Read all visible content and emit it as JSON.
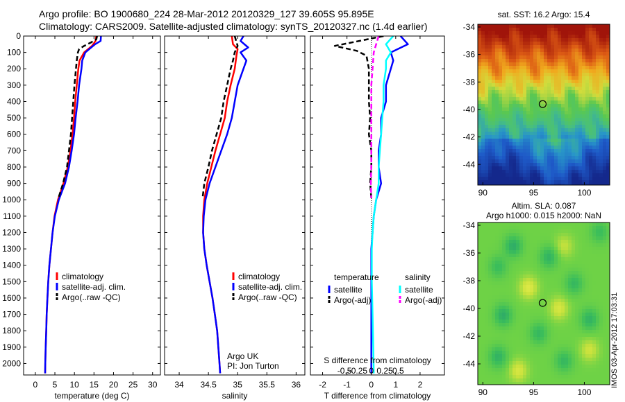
{
  "header": {
    "line1": "Argo profile: BO 1900680_224 28-Mar-2012 20120329_127 39.605S 95.895E",
    "line2": "Climatology: CARS2009. Satellite-adjusted climatology: synTS_20120327.nc (1.4d earlier)"
  },
  "side_text": "IMOS 03-Apr-2012 17:03:31",
  "colors": {
    "climatology": "#ff0000",
    "satellite": "#0000ff",
    "argo": "#000000",
    "sat_salinity": "#00ffff",
    "argo_salinity": "#ff00ff"
  },
  "chart_data": [
    {
      "type": "line",
      "xlabel": "temperature (deg C)",
      "ylabel": "",
      "xlim": [
        -3,
        32
      ],
      "ylim": [
        2070,
        0
      ],
      "xticks": [
        0,
        5,
        10,
        15,
        20,
        25,
        30
      ],
      "yticks": [
        0,
        100,
        200,
        300,
        400,
        500,
        600,
        700,
        800,
        900,
        1000,
        1100,
        1200,
        1300,
        1400,
        1500,
        1600,
        1700,
        1800,
        1900,
        2000
      ],
      "legend": {
        "placement": "lower-center",
        "entries": [
          "climatology",
          "satellite-adj. clim.",
          "Argo(..raw -QC)"
        ]
      },
      "series": [
        {
          "name": "climatology",
          "color": "#ff0000",
          "points": [
            [
              15.6,
              0
            ],
            [
              15.4,
              30
            ],
            [
              14.5,
              60
            ],
            [
              12.5,
              100
            ],
            [
              11.3,
              150
            ],
            [
              11.0,
              200
            ],
            [
              10.6,
              300
            ],
            [
              10.2,
              400
            ],
            [
              9.9,
              500
            ],
            [
              9.5,
              600
            ],
            [
              9.0,
              700
            ],
            [
              8.3,
              800
            ],
            [
              7.2,
              900
            ],
            [
              5.8,
              1000
            ],
            [
              4.9,
              1100
            ],
            [
              4.4,
              1200
            ],
            [
              4.0,
              1300
            ],
            [
              3.6,
              1400
            ],
            [
              3.3,
              1500
            ],
            [
              3.1,
              1600
            ],
            [
              2.9,
              1700
            ],
            [
              2.8,
              1800
            ],
            [
              2.65,
              1900
            ],
            [
              2.55,
              2000
            ],
            [
              2.5,
              2060
            ]
          ]
        },
        {
          "name": "satellite-adj. clim.",
          "color": "#0000ff",
          "points": [
            [
              16.8,
              0
            ],
            [
              16.7,
              30
            ],
            [
              15.3,
              50
            ],
            [
              12.8,
              100
            ],
            [
              12.0,
              150
            ],
            [
              11.8,
              200
            ],
            [
              11.2,
              300
            ],
            [
              10.8,
              400
            ],
            [
              10.3,
              500
            ],
            [
              9.9,
              600
            ],
            [
              9.3,
              700
            ],
            [
              8.6,
              800
            ],
            [
              7.6,
              900
            ],
            [
              6.0,
              1000
            ],
            [
              5.0,
              1100
            ],
            [
              4.4,
              1200
            ],
            [
              4.0,
              1300
            ],
            [
              3.6,
              1400
            ],
            [
              3.3,
              1500
            ],
            [
              3.1,
              1600
            ],
            [
              2.9,
              1700
            ],
            [
              2.8,
              1800
            ],
            [
              2.65,
              1900
            ],
            [
              2.55,
              2000
            ],
            [
              2.5,
              2060
            ]
          ]
        },
        {
          "name": "Argo(..raw -QC)",
          "color": "#000000",
          "dashed": true,
          "points": [
            [
              15.8,
              0
            ],
            [
              15.6,
              20
            ],
            [
              14.2,
              40
            ],
            [
              12.5,
              60
            ],
            [
              11.2,
              80
            ],
            [
              10.9,
              100
            ],
            [
              10.6,
              150
            ],
            [
              10.4,
              200
            ],
            [
              10.0,
              300
            ],
            [
              9.7,
              400
            ],
            [
              9.4,
              500
            ],
            [
              9.1,
              600
            ],
            [
              8.6,
              700
            ],
            [
              8.1,
              800
            ],
            [
              7.1,
              900
            ],
            [
              5.9,
              990
            ]
          ]
        }
      ]
    },
    {
      "type": "line",
      "xlabel": "salinity",
      "ylabel": "",
      "xlim": [
        33.75,
        36.15
      ],
      "ylim": [
        2070,
        0
      ],
      "xticks": [
        34,
        34.5,
        35,
        35.5,
        36
      ],
      "legend": {
        "placement": "lower-right",
        "entries": [
          "climatology",
          "satellite-adj. clim.",
          "Argo(..raw -QC)"
        ]
      },
      "annotations": [
        "Argo UK",
        "PI: Jon Turton"
      ],
      "series": [
        {
          "name": "climatology",
          "color": "#ff0000",
          "points": [
            [
              34.9,
              0
            ],
            [
              34.92,
              50
            ],
            [
              35.0,
              80
            ],
            [
              34.98,
              120
            ],
            [
              34.95,
              200
            ],
            [
              34.88,
              300
            ],
            [
              34.82,
              400
            ],
            [
              34.78,
              500
            ],
            [
              34.7,
              600
            ],
            [
              34.62,
              700
            ],
            [
              34.55,
              800
            ],
            [
              34.48,
              900
            ],
            [
              34.43,
              1000
            ],
            [
              34.41,
              1100
            ],
            [
              34.41,
              1200
            ],
            [
              34.43,
              1300
            ],
            [
              34.47,
              1400
            ],
            [
              34.52,
              1500
            ],
            [
              34.57,
              1600
            ],
            [
              34.61,
              1700
            ],
            [
              34.65,
              1800
            ],
            [
              34.67,
              1900
            ],
            [
              34.69,
              2000
            ],
            [
              34.7,
              2060
            ]
          ]
        },
        {
          "name": "satellite-adj. clim.",
          "color": "#0000ff",
          "points": [
            [
              35.1,
              0
            ],
            [
              35.05,
              30
            ],
            [
              35.18,
              70
            ],
            [
              35.05,
              100
            ],
            [
              35.15,
              150
            ],
            [
              35.1,
              200
            ],
            [
              35.0,
              300
            ],
            [
              34.95,
              400
            ],
            [
              34.9,
              500
            ],
            [
              34.82,
              600
            ],
            [
              34.72,
              700
            ],
            [
              34.62,
              800
            ],
            [
              34.52,
              900
            ],
            [
              34.45,
              1000
            ],
            [
              34.42,
              1100
            ],
            [
              34.41,
              1200
            ],
            [
              34.43,
              1300
            ],
            [
              34.47,
              1400
            ],
            [
              34.52,
              1500
            ],
            [
              34.57,
              1600
            ],
            [
              34.61,
              1700
            ],
            [
              34.65,
              1800
            ],
            [
              34.67,
              1900
            ],
            [
              34.69,
              2000
            ],
            [
              34.7,
              2060
            ]
          ]
        },
        {
          "name": "Argo(..raw -QC)",
          "color": "#000000",
          "dashed": true,
          "points": [
            [
              34.95,
              0
            ],
            [
              35.0,
              60
            ],
            [
              34.95,
              100
            ],
            [
              34.92,
              150
            ],
            [
              34.88,
              200
            ],
            [
              34.82,
              300
            ],
            [
              34.76,
              400
            ],
            [
              34.72,
              500
            ],
            [
              34.64,
              600
            ],
            [
              34.56,
              700
            ],
            [
              34.5,
              800
            ],
            [
              34.43,
              900
            ],
            [
              34.4,
              990
            ]
          ]
        }
      ]
    },
    {
      "type": "line",
      "xlabel": "T difference from climatology",
      "xlabel_top": "S difference from climatology",
      "ylabel": "",
      "xlim": [
        -2.5,
        3.0
      ],
      "ylim": [
        2070,
        0
      ],
      "xticks": [
        -2,
        -1,
        0,
        1,
        2
      ],
      "s_xticks": [
        -0.5,
        -0.25,
        0,
        0.25,
        0.5
      ],
      "legend": {
        "placement": "lower",
        "groups": [
          {
            "title": "temperature",
            "entries": [
              "satellite",
              "Argo(-adj)"
            ]
          },
          {
            "title": "salinity",
            "entries": [
              "satellite",
              "Argo(-adj)"
            ]
          }
        ]
      },
      "series": [
        {
          "name": "satellite",
          "quantity": "temperature",
          "color": "#0000ff",
          "points": [
            [
              1.2,
              0
            ],
            [
              1.5,
              50
            ],
            [
              0.8,
              100
            ],
            [
              0.9,
              150
            ],
            [
              0.8,
              200
            ],
            [
              0.6,
              300
            ],
            [
              0.6,
              400
            ],
            [
              0.4,
              500
            ],
            [
              0.4,
              600
            ],
            [
              0.3,
              700
            ],
            [
              0.3,
              800
            ],
            [
              0.4,
              900
            ],
            [
              0.2,
              1000
            ],
            [
              0.1,
              1100
            ],
            [
              0.05,
              1200
            ],
            [
              0,
              1300
            ],
            [
              0,
              1500
            ],
            [
              0,
              1700
            ],
            [
              0,
              1900
            ],
            [
              0,
              2060
            ]
          ]
        },
        {
          "name": "satellite",
          "quantity": "salinity",
          "color": "#00ffff",
          "points": [
            [
              0.9,
              0
            ],
            [
              0.6,
              50
            ],
            [
              0.8,
              100
            ],
            [
              0.6,
              150
            ],
            [
              0.6,
              200
            ],
            [
              0.5,
              300
            ],
            [
              0.5,
              400
            ],
            [
              0.45,
              500
            ],
            [
              0.4,
              600
            ],
            [
              0.35,
              700
            ],
            [
              0.3,
              800
            ],
            [
              0.3,
              900
            ],
            [
              0.2,
              1000
            ],
            [
              0.1,
              1100
            ],
            [
              0.05,
              1200
            ],
            [
              0.02,
              1300
            ],
            [
              0.02,
              1500
            ],
            [
              0.05,
              1700
            ],
            [
              0.08,
              1900
            ],
            [
              0.1,
              2060
            ]
          ]
        },
        {
          "name": "Argo(-adj)",
          "quantity": "temperature",
          "color": "#000000",
          "dashed": true,
          "points": [
            [
              0.5,
              0
            ],
            [
              -0.5,
              30
            ],
            [
              -1.5,
              60
            ],
            [
              -0.6,
              90
            ],
            [
              -0.2,
              120
            ],
            [
              -0.1,
              200
            ],
            [
              -0.1,
              300
            ],
            [
              -0.1,
              400
            ],
            [
              -0.05,
              500
            ],
            [
              -0.1,
              600
            ],
            [
              0,
              700
            ],
            [
              0,
              800
            ],
            [
              -0.05,
              900
            ],
            [
              0,
              990
            ]
          ]
        },
        {
          "name": "Argo(-adj)",
          "quantity": "salinity",
          "color": "#ff00ff",
          "dashed": true,
          "points": [
            [
              0.3,
              0
            ],
            [
              0.2,
              50
            ],
            [
              0.1,
              100
            ],
            [
              0.05,
              200
            ],
            [
              0,
              300
            ],
            [
              0,
              400
            ],
            [
              0,
              500
            ],
            [
              0,
              600
            ],
            [
              0,
              700
            ],
            [
              0,
              800
            ],
            [
              -0.02,
              900
            ],
            [
              0,
              990
            ]
          ]
        }
      ]
    },
    {
      "type": "heatmap",
      "title": "sat. SST: 16.2 Argo: 15.4",
      "xlim": [
        89.5,
        102.5
      ],
      "ylim": [
        -45.5,
        -33.8
      ],
      "xticks": [
        90,
        95,
        100
      ],
      "yticks": [
        -34,
        -36,
        -38,
        -40,
        -42,
        -44
      ],
      "marker": {
        "lon": 95.895,
        "lat": -39.605,
        "shape": "circle"
      }
    },
    {
      "type": "heatmap",
      "title_lines": [
        "Altim. SLA: 0.087",
        "Argo h1000: 0.015 h2000: NaN"
      ],
      "xlim": [
        89.5,
        102.5
      ],
      "ylim": [
        -45.5,
        -33.8
      ],
      "xticks": [
        90,
        95,
        100
      ],
      "yticks": [
        -34,
        -36,
        -38,
        -40,
        -42,
        -44
      ],
      "marker": {
        "lon": 95.895,
        "lat": -39.605,
        "shape": "circle"
      }
    }
  ]
}
